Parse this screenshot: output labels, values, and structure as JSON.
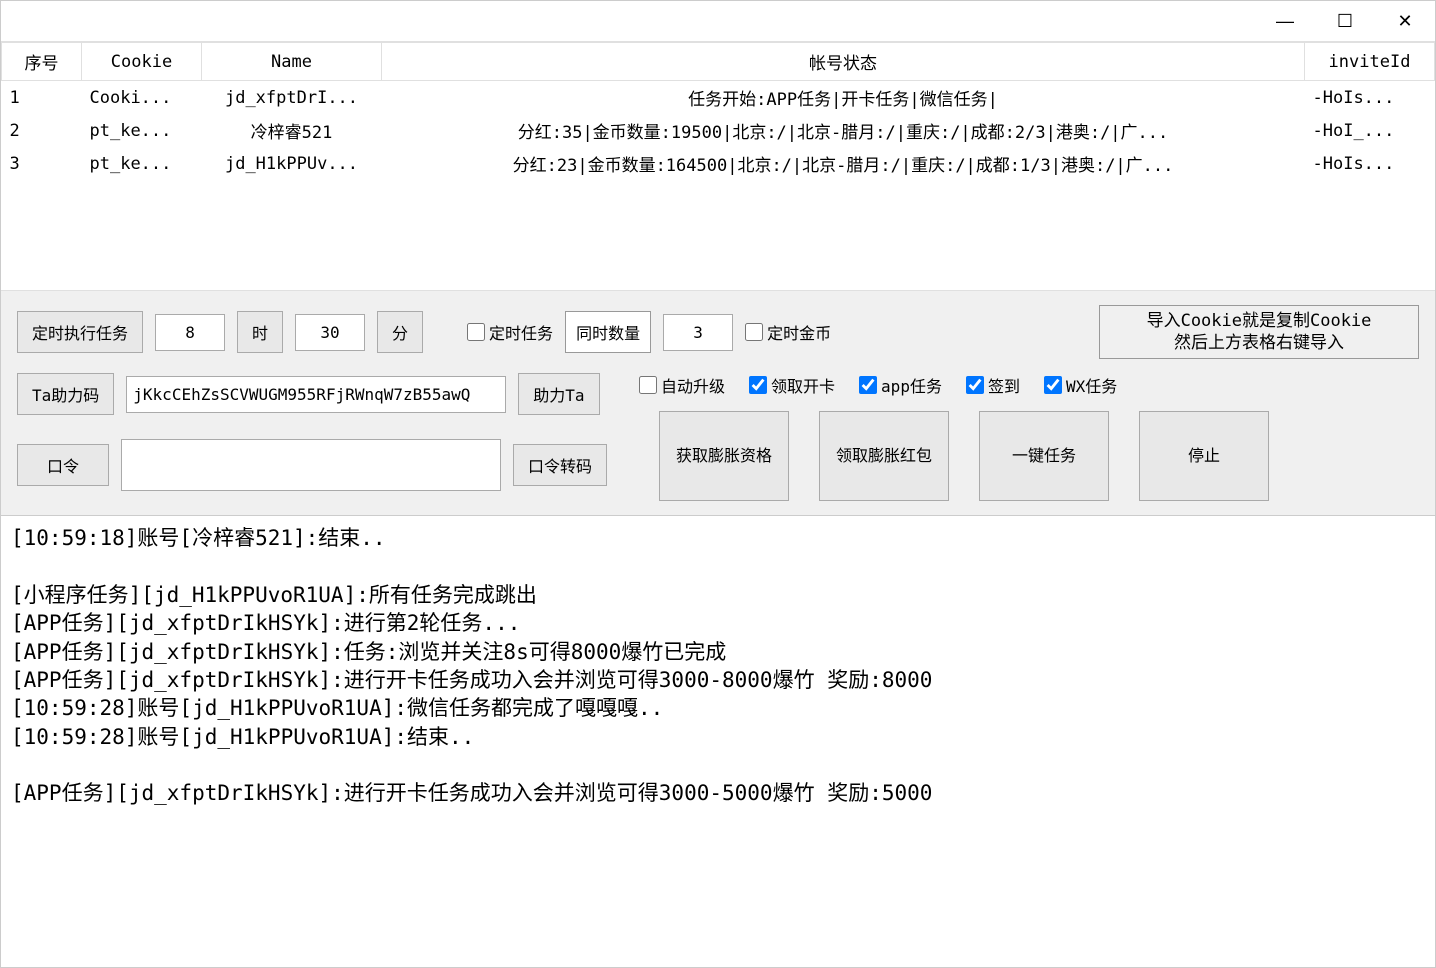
{
  "window": {
    "minimize": "—",
    "maximize": "☐",
    "close": "✕"
  },
  "table": {
    "headers": {
      "seq": "序号",
      "cookie": "Cookie",
      "name": "Name",
      "status": "帐号状态",
      "inviteId": "inviteId"
    },
    "col_widths": {
      "seq": "80px",
      "cookie": "120px",
      "name": "180px",
      "status": "auto",
      "inviteId": "130px"
    },
    "rows": [
      {
        "seq": "1",
        "cookie": "Cooki...",
        "name": "jd_xfptDrI...",
        "status": "任务开始:APP任务|开卡任务|微信任务|",
        "inviteId": "-HoIs..."
      },
      {
        "seq": "2",
        "cookie": "pt_ke...",
        "name": "冷梓睿521",
        "status": "分红:35|金币数量:19500|北京:/|北京-腊月:/|重庆:/|成都:2/3|港奥:/|广...",
        "inviteId": "-HoI_..."
      },
      {
        "seq": "3",
        "cookie": "pt_ke...",
        "name": "jd_H1kPPUv...",
        "status": "分红:23|金币数量:164500|北京:/|北京-腊月:/|重庆:/|成都:1/3|港奥:/|广...",
        "inviteId": "-HoIs..."
      }
    ]
  },
  "controls": {
    "timed_exec_btn": "定时执行任务",
    "hour_value": "8",
    "hour_label": "时",
    "minute_value": "30",
    "minute_label": "分",
    "timed_task_chk": "定时任务",
    "timed_task_checked": false,
    "concurrent_label": "同时数量",
    "concurrent_value": "3",
    "timed_coin_chk": "定时金币",
    "timed_coin_checked": false,
    "help_line1": "导入Cookie就是复制Cookie",
    "help_line2": "然后上方表格右键导入",
    "ta_code_btn": "Ta助力码",
    "ta_code_value": "jKkcCEhZsSCVWUGM955RFjRWnqW7zB55awQ",
    "help_ta_btn": "助力Ta",
    "auto_upgrade_chk": "自动升级",
    "auto_upgrade_checked": false,
    "receive_card_chk": "领取开卡",
    "receive_card_checked": true,
    "app_task_chk": "app任务",
    "app_task_checked": true,
    "signin_chk": "签到",
    "signin_checked": true,
    "wx_task_chk": "WX任务",
    "wx_task_checked": true,
    "password_btn": "口令",
    "password_value": "",
    "password_conv_btn": "口令转码",
    "get_expand_btn": "获取膨胀资格",
    "receive_expand_btn": "领取膨胀红包",
    "onekey_btn": "一键任务",
    "stop_btn": "停止"
  },
  "log": {
    "lines": [
      "[10:59:18]账号[冷梓睿521]:结束..",
      "",
      "[小程序任务][jd_H1kPPUvoR1UA]:所有任务完成跳出",
      "[APP任务][jd_xfptDrIkHSYk]:进行第2轮任务...",
      "[APP任务][jd_xfptDrIkHSYk]:任务:浏览并关注8s可得8000爆竹已完成",
      "[APP任务][jd_xfptDrIkHSYk]:进行开卡任务成功入会并浏览可得3000-8000爆竹 奖励:8000",
      "[10:59:28]账号[jd_H1kPPUvoR1UA]:微信任务都完成了嘎嘎嘎..",
      "[10:59:28]账号[jd_H1kPPUvoR1UA]:结束..",
      "",
      "[APP任务][jd_xfptDrIkHSYk]:进行开卡任务成功入会并浏览可得3000-5000爆竹 奖励:5000"
    ]
  }
}
